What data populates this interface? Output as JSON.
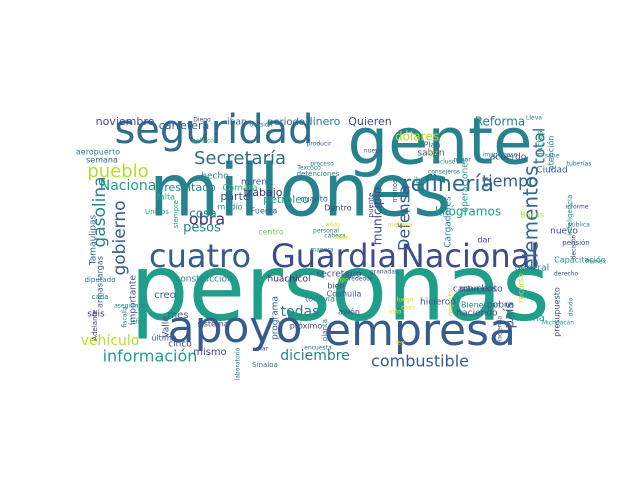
{
  "wordcloud": {
    "colors": {
      "dark_purple": "#3b1a63",
      "purple": "#46327e",
      "indigo": "#3e4a89",
      "blue": "#365c8d",
      "slate": "#2f6c8e",
      "teal": "#26828e",
      "teal_green": "#1f9e89",
      "green": "#35b779",
      "light_green": "#6ece58",
      "lime": "#b5de2b",
      "yellow": "#e5e419"
    },
    "words": [
      {
        "text": "personas",
        "c": "teal_green",
        "r": 0
      },
      {
        "text": "millones",
        "c": "teal",
        "r": 0
      },
      {
        "text": "gente",
        "c": "teal",
        "r": 0
      },
      {
        "text": "apoyo",
        "c": "blue",
        "r": 0
      },
      {
        "text": "empresa",
        "c": "blue",
        "r": 0
      },
      {
        "text": "seguridad",
        "c": "slate",
        "r": 0
      },
      {
        "text": "Guardia",
        "c": "indigo",
        "r": 0
      },
      {
        "text": "Nacional",
        "c": "indigo",
        "r": 0
      },
      {
        "text": "cuatro",
        "c": "blue",
        "r": 0
      },
      {
        "text": "refinería",
        "c": "slate",
        "r": 0
      },
      {
        "text": "Secretaría",
        "c": "slate",
        "r": 0
      },
      {
        "text": "pueblo",
        "c": "lime",
        "r": 0
      },
      {
        "text": "tiempo",
        "c": "blue",
        "r": 0
      },
      {
        "text": "información",
        "c": "teal_green",
        "r": 0
      },
      {
        "text": "combustible",
        "c": "blue",
        "r": 0
      },
      {
        "text": "diciembre",
        "c": "teal",
        "r": 0
      },
      {
        "text": "elementos",
        "c": "slate",
        "r": -90
      },
      {
        "text": "total",
        "c": "slate",
        "r": -90
      },
      {
        "text": "gasolina",
        "c": "teal",
        "r": -90
      },
      {
        "text": "gobierno",
        "c": "blue",
        "r": -90
      },
      {
        "text": "Defensa",
        "c": "blue",
        "r": -90
      },
      {
        "text": "vehículo",
        "c": "lime",
        "r": 0
      },
      {
        "text": "obra",
        "c": "purple",
        "r": 0
      },
      {
        "text": "cosa",
        "c": "teal",
        "r": 0
      },
      {
        "text": "pesos",
        "c": "teal",
        "r": 0
      },
      {
        "text": "todas",
        "c": "teal",
        "r": 0
      },
      {
        "text": "Nacional",
        "c": "teal_green",
        "r": 0
      },
      {
        "text": "kilógramos",
        "c": "teal_green",
        "r": 0
      },
      {
        "text": "país",
        "c": "blue",
        "r": -90
      },
      {
        "text": "municipio",
        "c": "indigo",
        "r": -90
      },
      {
        "text": "dólares",
        "c": "lime",
        "r": 0
      },
      {
        "text": "Reforma",
        "c": "teal",
        "r": 0
      },
      {
        "text": "carretera",
        "c": "blue",
        "r": 0
      },
      {
        "text": "noviembre",
        "c": "indigo",
        "r": 0
      },
      {
        "text": "resultado",
        "c": "teal",
        "r": 0
      },
      {
        "text": "trabajo",
        "c": "purple",
        "r": 0
      },
      {
        "text": "parte",
        "c": "blue",
        "r": 0
      },
      {
        "text": "petróleo",
        "c": "teal_green",
        "r": 0
      },
      {
        "text": "dinero",
        "c": "teal",
        "r": 0
      },
      {
        "text": "Quieren",
        "c": "indigo",
        "r": 0
      },
      {
        "text": "periodo",
        "c": "slate",
        "r": 0
      },
      {
        "text": "iban",
        "c": "blue",
        "r": 0
      },
      {
        "text": "hecho",
        "c": "teal",
        "r": 0
      },
      {
        "text": "miren",
        "c": "blue",
        "r": 0
      },
      {
        "text": "Camara",
        "c": "green",
        "r": 0
      },
      {
        "text": "general",
        "c": "teal",
        "r": 0
      },
      {
        "text": "Marina",
        "c": "teal_green",
        "r": 0
      },
      {
        "text": "mismo",
        "c": "indigo",
        "r": 0
      },
      {
        "text": "creo",
        "c": "blue",
        "r": 0
      },
      {
        "text": "mes",
        "c": "blue",
        "r": 0
      },
      {
        "text": "seis",
        "c": "purple",
        "r": 0
      },
      {
        "text": "cinco",
        "c": "indigo",
        "r": 0
      },
      {
        "text": "importante",
        "c": "indigo",
        "r": -90
      },
      {
        "text": "construcción",
        "c": "teal",
        "r": 0
      },
      {
        "text": "huachicol",
        "c": "dark_purple",
        "r": 0
      },
      {
        "text": "secretario",
        "c": "indigo",
        "r": 0
      },
      {
        "text": "cartuchos",
        "c": "blue",
        "r": 0
      },
      {
        "text": "acuerdo",
        "c": "indigo",
        "r": 0
      },
      {
        "text": "saben",
        "c": "indigo",
        "r": 0
      },
      {
        "text": "Ciudad",
        "c": "blue",
        "r": 0
      },
      {
        "text": "ductos",
        "c": "teal_green",
        "r": -90
      },
      {
        "text": "atención",
        "c": "teal",
        "r": -90
      },
      {
        "text": "Plan",
        "c": "blue",
        "r": 0
      },
      {
        "text": "iba",
        "c": "teal_green",
        "r": 0
      },
      {
        "text": "medio",
        "c": "teal",
        "r": 0
      },
      {
        "text": "Fuerza",
        "c": "blue",
        "r": 0
      },
      {
        "text": "Dentro",
        "c": "indigo",
        "r": 0
      },
      {
        "text": "cuanto",
        "c": "blue",
        "r": 0
      },
      {
        "text": "centro",
        "c": "light_green",
        "r": 0
      },
      {
        "text": "Bocas",
        "c": "lime",
        "r": 0
      },
      {
        "text": "nuevo",
        "c": "indigo",
        "r": 0
      },
      {
        "text": "dar",
        "c": "indigo",
        "r": 0
      },
      {
        "text": "momento",
        "c": "blue",
        "r": 0
      },
      {
        "text": "haciendo",
        "c": "indigo",
        "r": 0
      },
      {
        "text": "pobre",
        "c": "indigo",
        "r": 0
      },
      {
        "text": "Bienestar",
        "c": "teal",
        "r": 0
      },
      {
        "text": "recurso",
        "c": "lime",
        "r": -90
      },
      {
        "text": "presupuesto",
        "c": "indigo",
        "r": -90
      },
      {
        "text": "avión",
        "c": "indigo",
        "r": 0
      },
      {
        "text": "bien",
        "c": "indigo",
        "r": 0
      },
      {
        "text": "Coahuila",
        "c": "blue",
        "r": 0
      },
      {
        "text": "todavía",
        "c": "teal",
        "r": 0
      },
      {
        "text": "próximo",
        "c": "indigo",
        "r": 0
      },
      {
        "text": "programa",
        "c": "blue",
        "r": -90
      },
      {
        "text": "Valle",
        "c": "indigo",
        "r": -90
      },
      {
        "text": "último",
        "c": "blue",
        "r": 0
      },
      {
        "text": "Adelante",
        "c": "indigo",
        "r": -90
      },
      {
        "text": "armas largas",
        "c": "blue",
        "r": -90
      },
      {
        "text": "Tamaulipas",
        "c": "slate",
        "r": -90
      },
      {
        "text": "semana",
        "c": "blue",
        "r": 0
      },
      {
        "text": "aeropuerto",
        "c": "teal",
        "r": 0
      },
      {
        "text": "Sinaloa",
        "c": "slate",
        "r": 0
      },
      {
        "text": "cada",
        "c": "teal",
        "r": 0
      },
      {
        "text": "diputado",
        "c": "teal",
        "r": 0
      },
      {
        "text": "falta",
        "c": "green",
        "r": 0
      },
      {
        "text": "Unidos",
        "c": "teal_green",
        "r": 0
      },
      {
        "text": "siempre",
        "c": "teal_green",
        "r": -90
      },
      {
        "text": "operaciones",
        "c": "teal_green",
        "r": -90
      },
      {
        "text": "Cargadores",
        "c": "teal",
        "r": -90
      },
      {
        "text": "puente",
        "c": "indigo",
        "r": -90
      },
      {
        "text": "menos",
        "c": "blue",
        "r": -90
      },
      {
        "text": "vez",
        "c": "lime",
        "r": 0
      },
      {
        "text": "Capacitación",
        "c": "teal_green",
        "r": 0
      },
      {
        "text": "pensión",
        "c": "indigo",
        "r": 0
      },
      {
        "text": "pública",
        "c": "teal",
        "r": 0
      },
      {
        "text": "tuberías",
        "c": "teal",
        "r": 0
      },
      {
        "text": "sistema",
        "c": "indigo",
        "r": 0
      },
      {
        "text": "planta",
        "c": "teal",
        "r": -90
      },
      {
        "text": "laboratorio",
        "c": "teal",
        "r": -90
      },
      {
        "text": "detenciones",
        "c": "teal",
        "r": 0
      },
      {
        "text": "Diego",
        "c": "indigo",
        "r": 0
      },
      {
        "text": "político",
        "c": "green",
        "r": 0
      },
      {
        "text": "ocasión",
        "c": "teal",
        "r": 0
      },
      {
        "text": "proceso",
        "c": "teal",
        "r": 0
      },
      {
        "text": "nueva",
        "c": "indigo",
        "r": 0
      },
      {
        "text": "consejeros",
        "c": "teal",
        "r": 0
      },
      {
        "text": "incluso",
        "c": "teal",
        "r": 0
      },
      {
        "text": "Lleva",
        "c": "teal",
        "r": 0
      },
      {
        "text": "informe",
        "c": "indigo",
        "r": 0
      },
      {
        "text": "Texcoco",
        "c": "teal",
        "r": 0
      },
      {
        "text": "producir",
        "c": "blue",
        "r": 0
      },
      {
        "text": "mar",
        "c": "indigo",
        "r": 0
      },
      {
        "text": "encuesta",
        "c": "teal",
        "r": 0
      },
      {
        "text": "manera",
        "c": "teal",
        "r": 0
      },
      {
        "text": "personal",
        "c": "teal",
        "r": 0
      },
      {
        "text": "alrededor",
        "c": "indigo",
        "r": 0
      },
      {
        "text": "granadas",
        "c": "blue",
        "r": 0
      },
      {
        "text": "derecho",
        "c": "blue",
        "r": 0
      },
      {
        "text": "hicieron",
        "c": "indigo",
        "r": 0
      },
      {
        "text": "respecto",
        "c": "lime",
        "r": -90
      },
      {
        "text": "Hacienda",
        "c": "blue",
        "r": -90
      },
      {
        "text": "Michoacán",
        "c": "teal_green",
        "r": 0
      },
      {
        "text": "dando",
        "c": "slate",
        "r": -90
      },
      {
        "text": "decisión",
        "c": "indigo",
        "r": -90
      },
      {
        "text": "jefe",
        "c": "teal",
        "r": 0
      },
      {
        "text": "asegurado",
        "c": "teal",
        "r": 0
      },
      {
        "text": "mejor",
        "c": "teal",
        "r": 0
      },
      {
        "text": "inteligencia",
        "c": "teal_green",
        "r": -90
      },
      {
        "text": "fiscalía",
        "c": "teal",
        "r": -90
      },
      {
        "text": "imaginense",
        "c": "teal",
        "r": 0
      },
      {
        "text": "sabe",
        "c": "teal",
        "r": 0
      },
      {
        "text": "Pemex",
        "c": "teal",
        "r": 0
      },
      {
        "text": "cabeza",
        "c": "teal",
        "r": 0
      },
      {
        "text": "años",
        "c": "yellow",
        "r": 0
      },
      {
        "text": "luego",
        "c": "yellow",
        "r": 0
      },
      {
        "text": "ley",
        "c": "yellow",
        "r": 0
      },
      {
        "text": "caso",
        "c": "yellow",
        "r": 0
      },
      {
        "text": "niño",
        "c": "yellow",
        "r": 0
      },
      {
        "text": "toda",
        "c": "yellow",
        "r": 0
      },
      {
        "text": "tipo",
        "c": "lime",
        "r": 0
      },
      {
        "text": "mañana",
        "c": "yellow",
        "r": 0
      }
    ]
  }
}
